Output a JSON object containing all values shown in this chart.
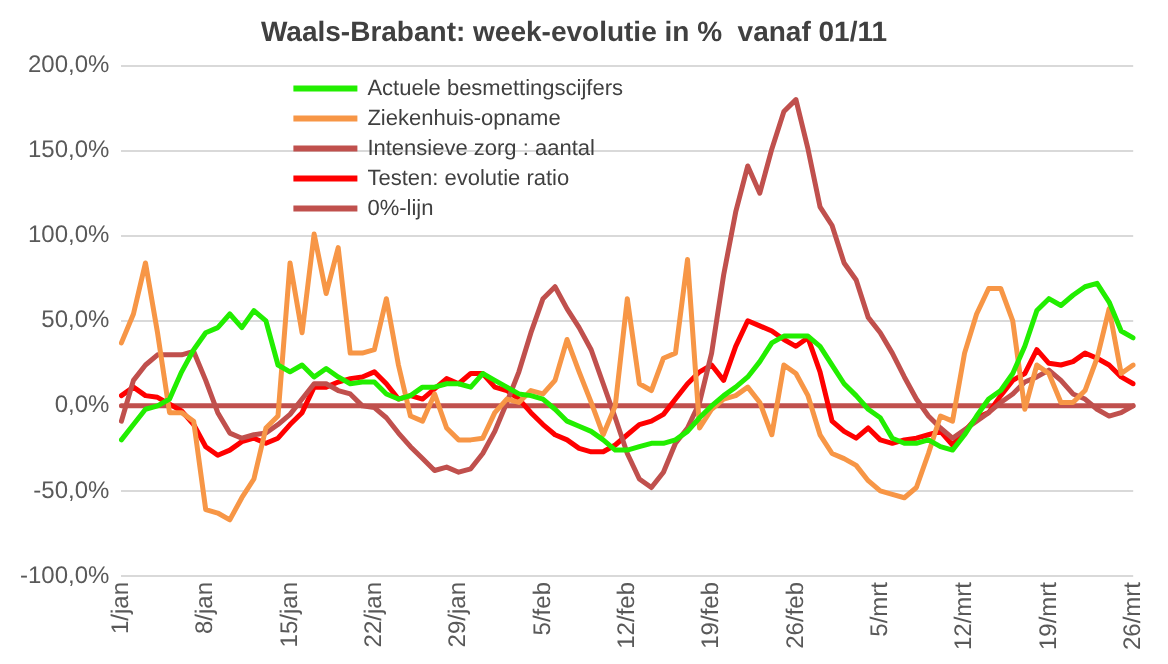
{
  "chart_data": {
    "type": "line",
    "title": "Waals-Brabant: week-evolutie in %  vanaf 01/11",
    "categories": [
      "1/jan",
      null,
      null,
      null,
      null,
      null,
      null,
      "8/jan",
      null,
      null,
      null,
      null,
      null,
      null,
      "15/jan",
      null,
      null,
      null,
      null,
      null,
      null,
      "22/jan",
      null,
      null,
      null,
      null,
      null,
      null,
      "29/jan",
      null,
      null,
      null,
      null,
      null,
      null,
      "5/feb",
      null,
      null,
      null,
      null,
      null,
      null,
      "12/feb",
      null,
      null,
      null,
      null,
      null,
      null,
      "19/feb",
      null,
      null,
      null,
      null,
      null,
      null,
      "26/feb",
      null,
      null,
      null,
      null,
      null,
      null,
      "5/mrt",
      null,
      null,
      null,
      null,
      null,
      null,
      "12/mrt",
      null,
      null,
      null,
      null,
      null,
      null,
      "19/mrt",
      null,
      null,
      null,
      null,
      null,
      null,
      "26/mrt"
    ],
    "series": [
      {
        "name": "Actuele besmettingscijfers",
        "color": "#22ee00",
        "values": [
          -20,
          -11,
          -2,
          0,
          4,
          20,
          33,
          43,
          46,
          54,
          46,
          56,
          50,
          24,
          20,
          24,
          17,
          22,
          17,
          13,
          14,
          14,
          7,
          4,
          6,
          11,
          11,
          13,
          13,
          11,
          19,
          15,
          11,
          7,
          6,
          4,
          -2,
          -9,
          -12,
          -15,
          -20,
          -26,
          -26,
          -24,
          -22,
          -22,
          -20,
          -15,
          -7,
          0,
          6,
          11,
          17,
          26,
          37,
          41,
          41,
          41,
          35,
          24,
          13,
          6,
          -2,
          -7,
          -19,
          -22,
          -22,
          -20,
          -24,
          -26,
          -17,
          -6,
          4,
          9,
          19,
          35,
          56,
          63,
          59,
          65,
          70,
          72,
          61,
          44,
          40
        ]
      },
      {
        "name": "Ziekenhuis-opname",
        "color": "#f79646",
        "values": [
          37,
          54,
          84,
          43,
          -4,
          -4,
          -9,
          -61,
          -63,
          -67,
          -54,
          -43,
          -13,
          -6,
          84,
          43,
          101,
          66,
          93,
          31,
          31,
          33,
          63,
          24,
          -6,
          -9,
          7,
          -13,
          -20,
          -20,
          -19,
          -4,
          4,
          2,
          9,
          7,
          15,
          39,
          20,
          2,
          -17,
          0,
          63,
          13,
          9,
          28,
          31,
          86,
          -13,
          -2,
          4,
          6,
          11,
          2,
          -17,
          24,
          19,
          6,
          -17,
          -28,
          -31,
          -35,
          -44,
          -50,
          -52,
          -54,
          -48,
          -28,
          -6,
          -9,
          31,
          54,
          69,
          69,
          50,
          -2,
          24,
          19,
          2,
          2,
          9,
          28,
          57,
          19,
          24
        ]
      },
      {
        "name": "Intensieve zorg : aantal",
        "color": "#c0504d",
        "values": [
          -9,
          15,
          24,
          30,
          30,
          30,
          32,
          15,
          -4,
          -16,
          -19,
          -17,
          -16,
          -11,
          -5,
          4,
          13,
          13,
          9,
          7,
          0,
          -1,
          -7,
          -16,
          -24,
          -31,
          -38,
          -36,
          -39,
          -37,
          -28,
          -15,
          2,
          20,
          43,
          63,
          70,
          57,
          46,
          33,
          13,
          -7,
          -28,
          -43,
          -48,
          -39,
          -22,
          -13,
          2,
          31,
          77,
          114,
          141,
          125,
          151,
          173,
          180,
          151,
          117,
          106,
          84,
          74,
          52,
          43,
          31,
          17,
          4,
          -6,
          -13,
          -19,
          -14,
          -9,
          -4,
          2,
          7,
          14,
          17,
          21,
          15,
          7,
          4,
          -2,
          -6,
          -4,
          0
        ]
      },
      {
        "name": "Testen: evolutie ratio",
        "color": "#ff0000",
        "values": [
          6,
          11,
          6,
          5,
          1,
          -3,
          -11,
          -24,
          -29,
          -26,
          -21,
          -19,
          -22,
          -19,
          -11,
          -4,
          11,
          11,
          14,
          16,
          17,
          20,
          13,
          4,
          6,
          4,
          10,
          16,
          13,
          19,
          19,
          11,
          9,
          4,
          -4,
          -11,
          -17,
          -20,
          -25,
          -27,
          -27,
          -23,
          -17,
          -11,
          -9,
          -5,
          4,
          13,
          20,
          24,
          15,
          35,
          50,
          47,
          44,
          39,
          35,
          40,
          20,
          -9,
          -15,
          -19,
          -13,
          -20,
          -22,
          -20,
          -19,
          -17,
          -15,
          -23,
          -15,
          -7,
          -4,
          6,
          15,
          19,
          33,
          25,
          24,
          26,
          31,
          28,
          24,
          17,
          13
        ]
      },
      {
        "name": "0%-lijn",
        "color": "#c0504d",
        "values": [
          0,
          0,
          0,
          0,
          0,
          0,
          0,
          0,
          0,
          0,
          0,
          0,
          0,
          0,
          0,
          0,
          0,
          0,
          0,
          0,
          0,
          0,
          0,
          0,
          0,
          0,
          0,
          0,
          0,
          0,
          0,
          0,
          0,
          0,
          0,
          0,
          0,
          0,
          0,
          0,
          0,
          0,
          0,
          0,
          0,
          0,
          0,
          0,
          0,
          0,
          0,
          0,
          0,
          0,
          0,
          0,
          0,
          0,
          0,
          0,
          0,
          0,
          0,
          0,
          0,
          0,
          0,
          0,
          0,
          0,
          0,
          0,
          0,
          0,
          0,
          0,
          0,
          0,
          0,
          0,
          0,
          0,
          0,
          0,
          0
        ]
      }
    ],
    "ylim": [
      -100,
      200
    ],
    "yticks": [
      {
        "value": -100,
        "label": "-100,0%"
      },
      {
        "value": -50,
        "label": "-50,0%"
      },
      {
        "value": 0,
        "label": "0,0%"
      },
      {
        "value": 50,
        "label": "50,0%"
      },
      {
        "value": 100,
        "label": "100,0%"
      },
      {
        "value": 150,
        "label": "150,0%"
      },
      {
        "value": 200,
        "label": "200,0%"
      }
    ],
    "grid": "y",
    "legend": "top",
    "marker": "none",
    "line_style": "solid"
  }
}
